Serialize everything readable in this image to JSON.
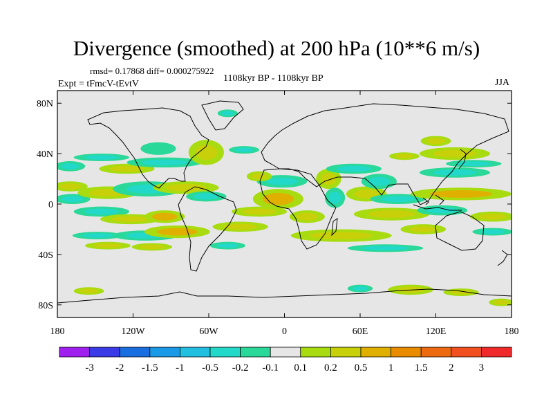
{
  "header": {
    "title": "Divergence (smoothed) at 200 hPa (10**6 m/s)",
    "stats": "rmsd= 0.17868 diff= 0.000275922",
    "expt": "Expt = tFmcV-tEvtV",
    "period": "1108kyr BP - 1108kyr BP",
    "season": "JJA"
  },
  "chart_data": {
    "type": "heatmap",
    "title": "Divergence (smoothed) at 200 hPa (10**6 m/s)",
    "projection": "cylindrical equidistant, global",
    "x_ticks": [
      "180",
      "120W",
      "60W",
      "0",
      "60E",
      "120E",
      "180"
    ],
    "x_values": [
      -180,
      -120,
      -60,
      0,
      60,
      120,
      180
    ],
    "y_ticks": [
      "80N",
      "40N",
      "0",
      "40S",
      "80S"
    ],
    "y_values": [
      80,
      40,
      0,
      -40,
      -80
    ],
    "xlim": [
      -180,
      180
    ],
    "ylim": [
      -90,
      90
    ],
    "colorbar": {
      "labels": [
        "-3",
        "-2",
        "-1.5",
        "-1",
        "-0.5",
        "-0.2",
        "-0.1",
        "0.1",
        "0.2",
        "0.5",
        "1",
        "1.5",
        "2",
        "3"
      ],
      "levels": [
        -3,
        -2,
        -1.5,
        -1,
        -0.5,
        -0.2,
        -0.1,
        0.1,
        0.2,
        0.5,
        1,
        1.5,
        2,
        3
      ],
      "colors": [
        "#a020f0",
        "#3a3ae6",
        "#1a6fe0",
        "#1a9ae6",
        "#22bfe0",
        "#22d8c8",
        "#2ad89a",
        "#e6e6e6",
        "#a8dc10",
        "#c8d00a",
        "#e0b000",
        "#ea8c00",
        "#ee6a10",
        "#f05020",
        "#f02a2a"
      ]
    },
    "blobs": [
      {
        "lon": -125,
        "lat": 28,
        "w": 22,
        "h": 4,
        "v": 0.25
      },
      {
        "lon": -95,
        "lat": 33,
        "w": 30,
        "h": 4,
        "v": -0.3
      },
      {
        "lon": -100,
        "lat": 44,
        "w": 14,
        "h": 5,
        "v": -0.2
      },
      {
        "lon": -62,
        "lat": 41,
        "w": 14,
        "h": 10,
        "v": 0.3
      },
      {
        "lon": -32,
        "lat": 43,
        "w": 12,
        "h": 3,
        "v": -0.3
      },
      {
        "lon": -145,
        "lat": 37,
        "w": 22,
        "h": 3,
        "v": -0.3
      },
      {
        "lon": -170,
        "lat": 30,
        "w": 12,
        "h": 4,
        "v": -0.4
      },
      {
        "lon": -170,
        "lat": 14,
        "w": 14,
        "h": 4,
        "v": 0.3
      },
      {
        "lon": -168,
        "lat": 4,
        "w": 14,
        "h": 4,
        "v": -0.3
      },
      {
        "lon": -140,
        "lat": 9,
        "w": 24,
        "h": 5,
        "v": 0.45
      },
      {
        "lon": -108,
        "lat": 12,
        "w": 28,
        "h": 6,
        "v": -0.5
      },
      {
        "lon": -78,
        "lat": 13,
        "w": 26,
        "h": 5,
        "v": 0.3
      },
      {
        "lon": -62,
        "lat": 6,
        "w": 16,
        "h": 4,
        "v": -0.3
      },
      {
        "lon": -145,
        "lat": -6,
        "w": 22,
        "h": 4,
        "v": -0.3
      },
      {
        "lon": -122,
        "lat": -12,
        "w": 24,
        "h": 4,
        "v": 0.25
      },
      {
        "lon": -95,
        "lat": -10,
        "w": 16,
        "h": 5,
        "v": 0.7
      },
      {
        "lon": -110,
        "lat": -25,
        "w": 26,
        "h": 4,
        "v": -0.35
      },
      {
        "lon": -85,
        "lat": -22,
        "w": 26,
        "h": 5,
        "v": 0.6
      },
      {
        "lon": -35,
        "lat": -18,
        "w": 22,
        "h": 4,
        "v": 0.3
      },
      {
        "lon": -148,
        "lat": -25,
        "w": 20,
        "h": 3,
        "v": -0.25
      },
      {
        "lon": -140,
        "lat": -33,
        "w": 18,
        "h": 3,
        "v": 0.3
      },
      {
        "lon": -105,
        "lat": -34,
        "w": 16,
        "h": 3,
        "v": 0.2
      },
      {
        "lon": -45,
        "lat": -33,
        "w": 14,
        "h": 3,
        "v": -0.25
      },
      {
        "lon": -5,
        "lat": 4,
        "w": 20,
        "h": 8,
        "v": 0.6
      },
      {
        "lon": -20,
        "lat": -6,
        "w": 22,
        "h": 4,
        "v": 0.4
      },
      {
        "lon": -2,
        "lat": 18,
        "w": 20,
        "h": 5,
        "v": -0.3
      },
      {
        "lon": -20,
        "lat": 22,
        "w": 10,
        "h": 4,
        "v": 0.25
      },
      {
        "lon": 18,
        "lat": -10,
        "w": 14,
        "h": 5,
        "v": 0.3
      },
      {
        "lon": 35,
        "lat": 20,
        "w": 10,
        "h": 8,
        "v": 0.35
      },
      {
        "lon": 40,
        "lat": 5,
        "w": 8,
        "h": 8,
        "v": -0.3
      },
      {
        "lon": 55,
        "lat": 28,
        "w": 22,
        "h": 4,
        "v": -0.3
      },
      {
        "lon": 65,
        "lat": 8,
        "w": 16,
        "h": 6,
        "v": 0.3
      },
      {
        "lon": 75,
        "lat": 18,
        "w": 14,
        "h": 6,
        "v": -0.35
      },
      {
        "lon": 85,
        "lat": -8,
        "w": 30,
        "h": 5,
        "v": 0.45
      },
      {
        "lon": 90,
        "lat": 4,
        "w": 22,
        "h": 4,
        "v": -0.3
      },
      {
        "lon": 45,
        "lat": -25,
        "w": 40,
        "h": 5,
        "v": 0.4
      },
      {
        "lon": 80,
        "lat": -35,
        "w": 30,
        "h": 3,
        "v": -0.25
      },
      {
        "lon": 110,
        "lat": -20,
        "w": 18,
        "h": 4,
        "v": 0.25
      },
      {
        "lon": 140,
        "lat": 8,
        "w": 40,
        "h": 5,
        "v": 0.75
      },
      {
        "lon": 135,
        "lat": 25,
        "w": 28,
        "h": 4,
        "v": -0.35
      },
      {
        "lon": 125,
        "lat": -5,
        "w": 20,
        "h": 4,
        "v": -0.3
      },
      {
        "lon": 135,
        "lat": 40,
        "w": 28,
        "h": 5,
        "v": 0.35
      },
      {
        "lon": 150,
        "lat": 32,
        "w": 22,
        "h": 3,
        "v": -0.3
      },
      {
        "lon": 120,
        "lat": 50,
        "w": 12,
        "h": 4,
        "v": 0.3
      },
      {
        "lon": 95,
        "lat": 38,
        "w": 12,
        "h": 3,
        "v": 0.25
      },
      {
        "lon": 165,
        "lat": -10,
        "w": 18,
        "h": 4,
        "v": 0.3
      },
      {
        "lon": 165,
        "lat": -22,
        "w": 16,
        "h": 3,
        "v": -0.3
      },
      {
        "lon": -45,
        "lat": 72,
        "w": 8,
        "h": 3,
        "v": -0.3
      },
      {
        "lon": 100,
        "lat": -68,
        "w": 18,
        "h": 4,
        "v": 0.45
      },
      {
        "lon": 140,
        "lat": -70,
        "w": 14,
        "h": 3,
        "v": 0.3
      },
      {
        "lon": 60,
        "lat": -67,
        "w": 10,
        "h": 3,
        "v": -0.25
      },
      {
        "lon": 172,
        "lat": -78,
        "w": 10,
        "h": 3,
        "v": 0.3
      },
      {
        "lon": -155,
        "lat": -69,
        "w": 12,
        "h": 3,
        "v": 0.3
      }
    ]
  }
}
